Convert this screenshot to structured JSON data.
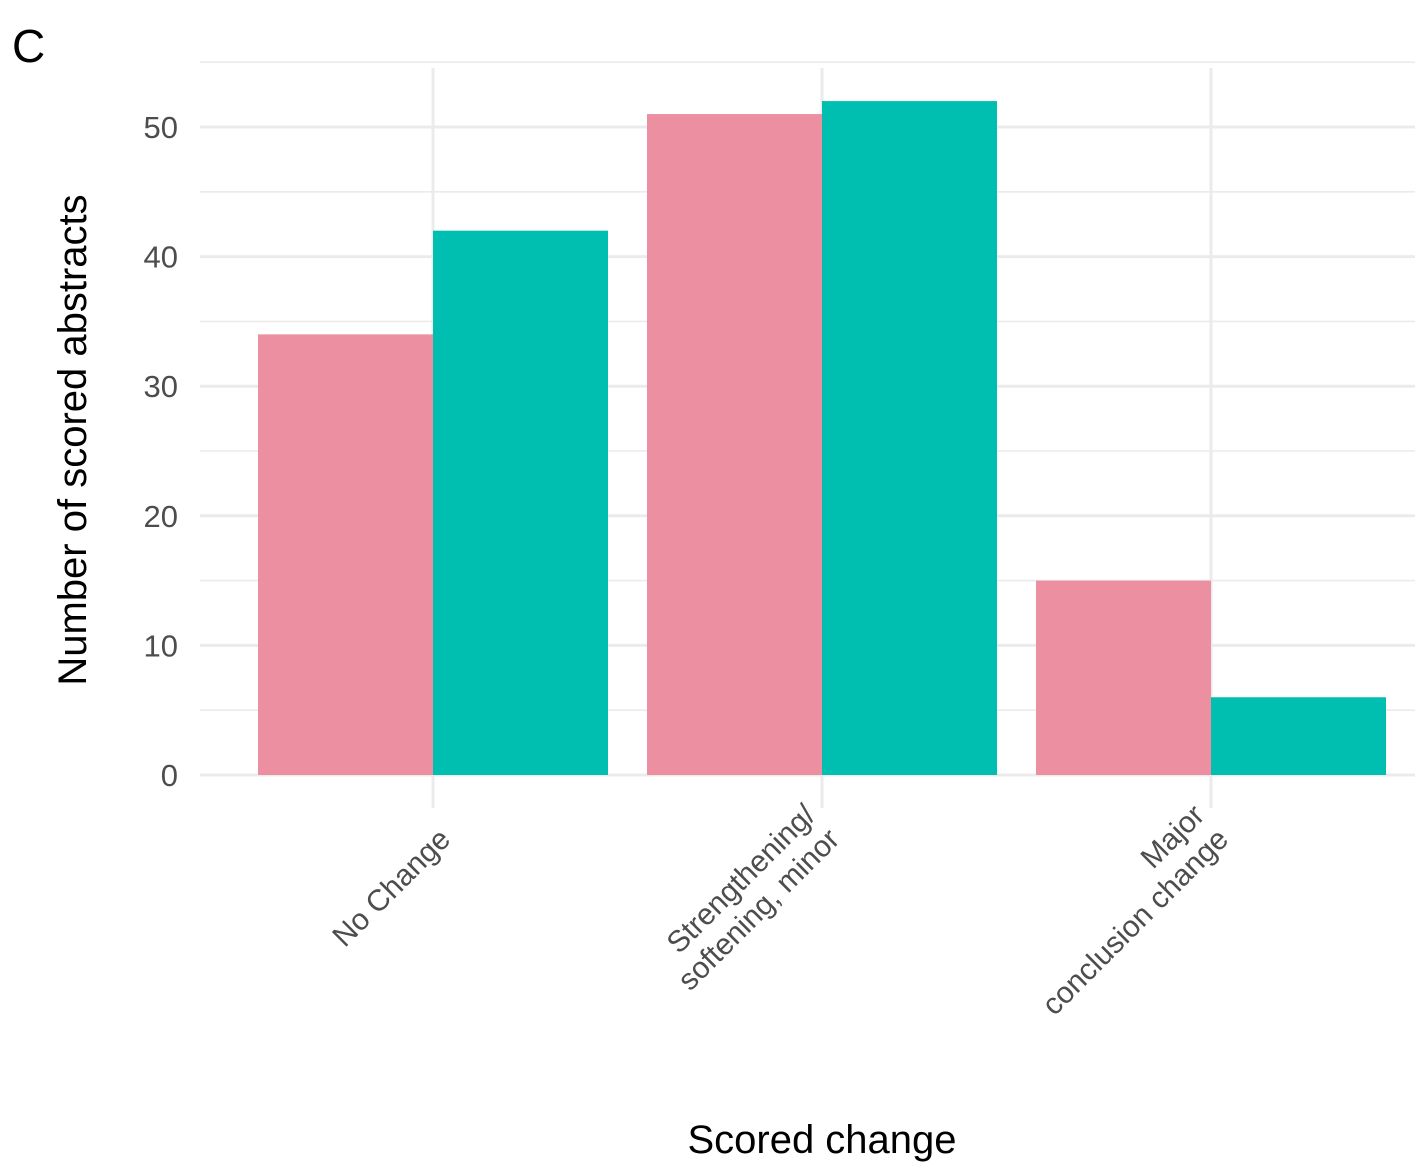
{
  "panel_label": "C",
  "colors": {
    "series_1": "#ec8fa1",
    "series_2": "#00bfb1",
    "grid": "#ebebeb",
    "tick_text": "#4d4d4d"
  },
  "chart_data": {
    "type": "bar",
    "categories": [
      "No Change",
      "Strengthening/\nsoftening, minor",
      "Major\nconclusion change"
    ],
    "series": [
      {
        "values": [
          34,
          51,
          15
        ]
      },
      {
        "values": [
          42,
          52,
          6
        ]
      }
    ],
    "xlabel": "Scored change",
    "ylabel": "Number of scored abstracts",
    "ylim": [
      0,
      55
    ],
    "yticks": [
      0,
      10,
      20,
      30,
      40,
      50
    ],
    "grid": true,
    "legend": "none"
  }
}
